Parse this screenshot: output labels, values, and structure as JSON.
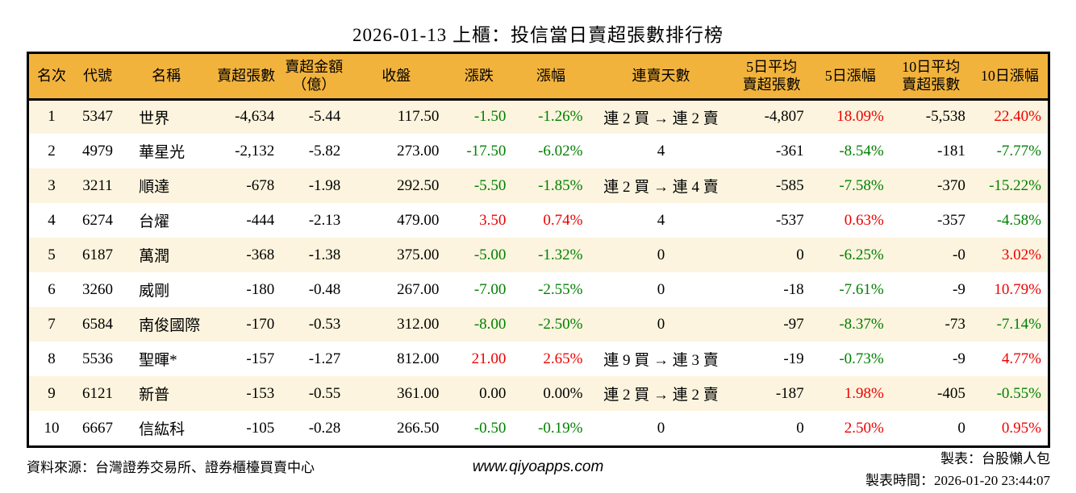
{
  "title": "2026-01-13 上櫃：投信當日賣超張數排行榜",
  "colors": {
    "header_bg": "#F2B33D",
    "row_stripe_bg": "#FCF4DE",
    "row_bg": "#FFFFFF",
    "up_red": "#EE0000",
    "down_green": "#008000",
    "text": "#000000",
    "border": "#000000"
  },
  "chart_data": {
    "type": "table",
    "title": "2026-01-13 上櫃：投信當日賣超張數排行榜",
    "columns": [
      {
        "key": "rank",
        "label": "名次",
        "align": "center",
        "colored": false
      },
      {
        "key": "code",
        "label": "代號",
        "align": "center",
        "colored": false
      },
      {
        "key": "name",
        "label": "名稱",
        "align": "left",
        "colored": false
      },
      {
        "key": "sell_volume",
        "label": "賣超張數",
        "align": "right",
        "colored": false
      },
      {
        "key": "sell_amount",
        "label": "賣超金額\n（億）",
        "align": "right",
        "colored": false
      },
      {
        "key": "close",
        "label": "收盤",
        "align": "right",
        "colored": false
      },
      {
        "key": "change",
        "label": "漲跌",
        "align": "right",
        "colored": true
      },
      {
        "key": "change_pct",
        "label": "漲幅",
        "align": "right",
        "colored": true
      },
      {
        "key": "streak",
        "label": "連賣天數",
        "align": "center",
        "colored": false
      },
      {
        "key": "avg5",
        "label": "5日平均\n賣超張數",
        "align": "right",
        "colored": false
      },
      {
        "key": "pct5",
        "label": "5日漲幅",
        "align": "right",
        "colored": true
      },
      {
        "key": "avg10",
        "label": "10日平均\n賣超張數",
        "align": "right",
        "colored": false
      },
      {
        "key": "pct10",
        "label": "10日漲幅",
        "align": "right",
        "colored": true
      }
    ],
    "rows": [
      [
        "1",
        "5347",
        "世界",
        "-4,634",
        "-5.44",
        "117.50",
        "-1.50",
        "-1.26%",
        "連 2 買 → 連 2 賣",
        "-4,807",
        "18.09%",
        "-5,538",
        "22.40%"
      ],
      [
        "2",
        "4979",
        "華星光",
        "-2,132",
        "-5.82",
        "273.00",
        "-17.50",
        "-6.02%",
        "4",
        "-361",
        "-8.54%",
        "-181",
        "-7.77%"
      ],
      [
        "3",
        "3211",
        "順達",
        "-678",
        "-1.98",
        "292.50",
        "-5.50",
        "-1.85%",
        "連 2 買 → 連 4 賣",
        "-585",
        "-7.58%",
        "-370",
        "-15.22%"
      ],
      [
        "4",
        "6274",
        "台燿",
        "-444",
        "-2.13",
        "479.00",
        "3.50",
        "0.74%",
        "4",
        "-537",
        "0.63%",
        "-357",
        "-4.58%"
      ],
      [
        "5",
        "6187",
        "萬潤",
        "-368",
        "-1.38",
        "375.00",
        "-5.00",
        "-1.32%",
        "0",
        "0",
        "-6.25%",
        "-0",
        "3.02%"
      ],
      [
        "6",
        "3260",
        "威剛",
        "-180",
        "-0.48",
        "267.00",
        "-7.00",
        "-2.55%",
        "0",
        "-18",
        "-7.61%",
        "-9",
        "10.79%"
      ],
      [
        "7",
        "6584",
        "南俊國際",
        "-170",
        "-0.53",
        "312.00",
        "-8.00",
        "-2.50%",
        "0",
        "-97",
        "-8.37%",
        "-73",
        "-7.14%"
      ],
      [
        "8",
        "5536",
        "聖暉*",
        "-157",
        "-1.27",
        "812.00",
        "21.00",
        "2.65%",
        "連 9 買 → 連 3 賣",
        "-19",
        "-0.73%",
        "-9",
        "4.77%"
      ],
      [
        "9",
        "6121",
        "新普",
        "-153",
        "-0.55",
        "361.00",
        "0.00",
        "0.00%",
        "連 2 買 → 連 2 賣",
        "-187",
        "1.98%",
        "-405",
        "-0.55%"
      ],
      [
        "10",
        "6667",
        "信紘科",
        "-105",
        "-0.28",
        "266.50",
        "-0.50",
        "-0.19%",
        "0",
        "0",
        "2.50%",
        "0",
        "0.95%"
      ]
    ]
  },
  "footer": {
    "source": "資料來源：台灣證券交易所、證券櫃檯買賣中心",
    "website": "www.qiyoapps.com",
    "maker": "製表：台股懶人包",
    "generated_at": "製表時間：2026-01-20 23:44:07"
  }
}
